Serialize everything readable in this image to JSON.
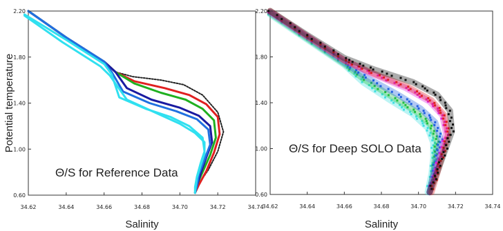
{
  "chart_data": [
    {
      "type": "line",
      "annotation": "Θ/S for Reference Data",
      "xlabel": "Salinity",
      "ylabel": "Potential temperature",
      "xlim": [
        34.62,
        34.74
      ],
      "ylim": [
        0.6,
        2.2
      ],
      "x_ticks": [
        "34.62",
        "34.64",
        "34.66",
        "34.68",
        "34.70",
        "34.72",
        "34.74"
      ],
      "y_ticks": [
        "0.60",
        "1.00",
        "1.40",
        "1.80",
        "2.20"
      ],
      "grid": false,
      "series": [
        {
          "color": "#222222",
          "style": "dotted",
          "x": [
            34.62,
            34.64,
            34.66,
            34.666,
            34.675,
            34.69,
            34.702,
            34.712,
            34.72,
            34.723,
            34.72,
            34.715,
            34.71,
            34.708
          ],
          "y": [
            2.2,
            1.97,
            1.76,
            1.67,
            1.63,
            1.6,
            1.56,
            1.47,
            1.32,
            1.15,
            0.98,
            0.82,
            0.7,
            0.62
          ]
        },
        {
          "color": "#e02020",
          "x": [
            34.62,
            34.64,
            34.66,
            34.666,
            34.676,
            34.692,
            34.705,
            34.714,
            34.72,
            34.721,
            34.718,
            34.714,
            34.71,
            34.708
          ],
          "y": [
            2.2,
            1.97,
            1.76,
            1.67,
            1.59,
            1.53,
            1.47,
            1.39,
            1.28,
            1.13,
            0.97,
            0.81,
            0.69,
            0.62
          ]
        },
        {
          "color": "#20b020",
          "x": [
            34.62,
            34.64,
            34.66,
            34.666,
            34.676,
            34.69,
            34.703,
            34.712,
            34.718,
            34.719,
            34.716,
            34.712,
            34.709,
            34.708
          ],
          "y": [
            2.2,
            1.97,
            1.76,
            1.67,
            1.57,
            1.49,
            1.43,
            1.35,
            1.25,
            1.1,
            0.95,
            0.8,
            0.69,
            0.62
          ]
        },
        {
          "color": "#1a1aa0",
          "x": [
            34.62,
            34.64,
            34.66,
            34.666,
            34.672,
            34.685,
            34.7,
            34.71,
            34.716,
            34.717,
            34.714,
            34.711,
            34.709,
            34.708
          ],
          "y": [
            2.2,
            1.97,
            1.76,
            1.67,
            1.53,
            1.43,
            1.36,
            1.29,
            1.2,
            1.06,
            0.93,
            0.79,
            0.68,
            0.62
          ]
        },
        {
          "color": "#2070e0",
          "x": [
            34.62,
            34.64,
            34.66,
            34.664,
            34.67,
            34.684,
            34.698,
            34.709,
            34.715,
            34.716,
            34.713,
            34.71,
            34.709,
            34.708
          ],
          "y": [
            2.2,
            1.97,
            1.76,
            1.67,
            1.5,
            1.4,
            1.33,
            1.26,
            1.17,
            1.04,
            0.91,
            0.78,
            0.68,
            0.62
          ]
        },
        {
          "color": "#30e0f0",
          "x": [
            34.618,
            34.64,
            34.66,
            34.664,
            34.668,
            34.682,
            34.695,
            34.705,
            34.712,
            34.713,
            34.711,
            34.709,
            34.708,
            34.708
          ],
          "y": [
            2.17,
            1.95,
            1.74,
            1.65,
            1.45,
            1.35,
            1.28,
            1.2,
            1.1,
            0.98,
            0.88,
            0.76,
            0.67,
            0.62
          ]
        },
        {
          "color": "#30e0f0",
          "x": [
            34.618,
            34.638,
            34.658,
            34.663,
            34.672,
            34.688,
            34.7,
            34.708,
            34.713,
            34.713,
            34.711,
            34.709,
            34.708
          ],
          "y": [
            2.16,
            1.93,
            1.72,
            1.64,
            1.43,
            1.31,
            1.22,
            1.14,
            1.06,
            0.96,
            0.86,
            0.75,
            0.63
          ]
        }
      ]
    },
    {
      "type": "scatter",
      "annotation": "Θ/S for Deep SOLO Data",
      "xlabel": "Salinity",
      "xlim": [
        34.62,
        34.74
      ],
      "ylim": [
        0.6,
        2.2
      ],
      "x_ticks": [
        "34.62",
        "34.64",
        "34.66",
        "34.68",
        "34.70",
        "34.72",
        "34.74"
      ],
      "y_ticks": [
        "0.60",
        "1.00",
        "1.40",
        "1.80",
        "2.20"
      ],
      "grid": false,
      "series": [
        {
          "color": "#40e0e0",
          "x": [
            34.62,
            34.64,
            34.66,
            34.67,
            34.685,
            34.697,
            34.705,
            34.708,
            34.708,
            34.707,
            34.705
          ],
          "y": [
            2.17,
            1.95,
            1.73,
            1.58,
            1.42,
            1.3,
            1.18,
            1.05,
            0.92,
            0.78,
            0.62
          ]
        },
        {
          "color": "#20c040",
          "x": [
            34.62,
            34.64,
            34.66,
            34.671,
            34.687,
            34.699,
            34.707,
            34.71,
            34.709,
            34.708,
            34.706
          ],
          "y": [
            2.18,
            1.96,
            1.74,
            1.6,
            1.44,
            1.32,
            1.2,
            1.06,
            0.93,
            0.78,
            0.62
          ]
        },
        {
          "color": "#2060e0",
          "x": [
            34.62,
            34.64,
            34.66,
            34.672,
            34.689,
            34.701,
            34.709,
            34.712,
            34.71,
            34.708,
            34.706
          ],
          "y": [
            2.19,
            1.97,
            1.75,
            1.62,
            1.47,
            1.35,
            1.23,
            1.08,
            0.94,
            0.78,
            0.62
          ]
        },
        {
          "color": "#e020e0",
          "x": [
            34.62,
            34.64,
            34.66,
            34.674,
            34.693,
            34.706,
            34.713,
            34.715,
            34.712,
            34.709,
            34.706
          ],
          "y": [
            2.19,
            1.98,
            1.77,
            1.66,
            1.53,
            1.41,
            1.29,
            1.12,
            0.96,
            0.79,
            0.62
          ]
        },
        {
          "color": "#e02020",
          "x": [
            34.62,
            34.64,
            34.66,
            34.675,
            34.694,
            34.707,
            34.714,
            34.716,
            34.713,
            34.71,
            34.707
          ],
          "y": [
            2.2,
            1.98,
            1.77,
            1.66,
            1.54,
            1.42,
            1.29,
            1.12,
            0.95,
            0.78,
            0.62
          ]
        },
        {
          "color": "#111111",
          "x": [
            34.62,
            34.64,
            34.66,
            34.676,
            34.697,
            34.71,
            34.717,
            34.718,
            34.714,
            34.71,
            34.706
          ],
          "y": [
            2.2,
            1.99,
            1.79,
            1.69,
            1.58,
            1.47,
            1.33,
            1.15,
            0.97,
            0.79,
            0.62
          ]
        }
      ]
    }
  ]
}
